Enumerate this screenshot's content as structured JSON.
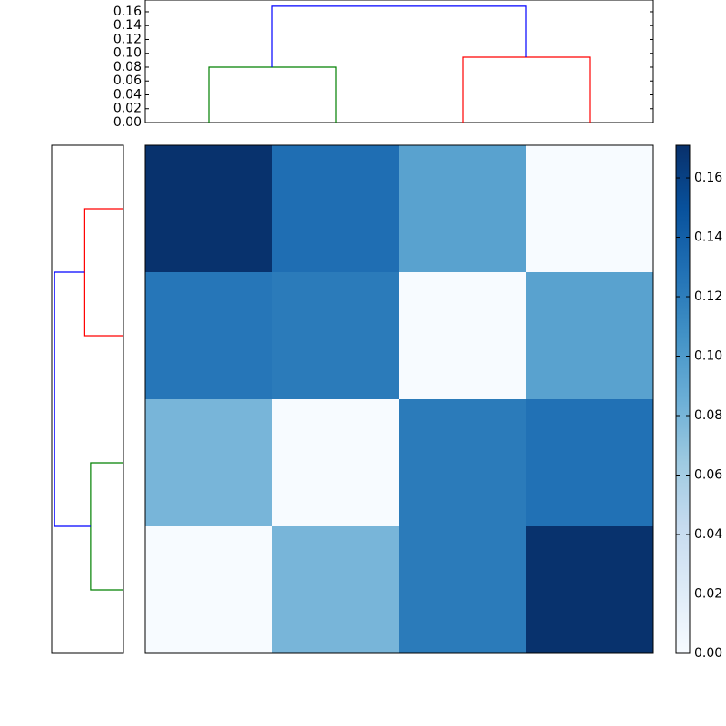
{
  "chart_data": [
    {
      "type": "heatmap",
      "colormap": "Blues",
      "values": [
        [
          0.17,
          0.13,
          0.095,
          0
        ],
        [
          0.125,
          0.122,
          0,
          0.095
        ],
        [
          0.08,
          0,
          0.122,
          0.128
        ],
        [
          0,
          0.08,
          0.122,
          0.17
        ]
      ],
      "clim": [
        0,
        0.171
      ],
      "cticks": [
        {
          "value": 0,
          "label": "0.00"
        },
        {
          "value": 0.02,
          "label": "0.02"
        },
        {
          "value": 0.04,
          "label": "0.04"
        },
        {
          "value": 0.06,
          "label": "0.06"
        },
        {
          "value": 0.08,
          "label": "0.08"
        },
        {
          "value": 0.1,
          "label": "0.10"
        },
        {
          "value": 0.12,
          "label": "0.12"
        },
        {
          "value": 0.14,
          "label": "0.14"
        },
        {
          "value": 0.16,
          "label": "0.16"
        }
      ]
    },
    {
      "type": "dendrogram",
      "orientation": "top",
      "xlim": [
        -0.5,
        3.5
      ],
      "ylim": [
        0,
        0.177
      ],
      "yticks": [
        {
          "value": 0,
          "label": "0.00"
        },
        {
          "value": 0.02,
          "label": "0.02"
        },
        {
          "value": 0.04,
          "label": "0.04"
        },
        {
          "value": 0.06,
          "label": "0.06"
        },
        {
          "value": 0.08,
          "label": "0.08"
        },
        {
          "value": 0.1,
          "label": "0.10"
        },
        {
          "value": 0.12,
          "label": "0.12"
        },
        {
          "value": 0.14,
          "label": "0.14"
        },
        {
          "value": 0.16,
          "label": "0.16"
        }
      ],
      "links": [
        {
          "color": "#008000",
          "x": [
            0,
            0,
            1,
            1
          ],
          "d": [
            0,
            0.08,
            0.08,
            0
          ]
        },
        {
          "color": "#ff0000",
          "x": [
            2,
            2,
            3,
            3
          ],
          "d": [
            0,
            0.0944,
            0.0944,
            0
          ]
        },
        {
          "color": "#0000ff",
          "x": [
            0.5,
            0.5,
            2.5,
            2.5
          ],
          "d": [
            0.08,
            0.168,
            0.168,
            0.0944
          ]
        }
      ]
    },
    {
      "type": "dendrogram",
      "orientation": "left",
      "ylim": [
        -0.5,
        3.5
      ],
      "xlim": [
        0.175,
        0
      ],
      "links": [
        {
          "color": "#008000",
          "x": [
            0,
            0,
            1,
            1
          ],
          "d": [
            0,
            0.08,
            0.08,
            0
          ]
        },
        {
          "color": "#ff0000",
          "x": [
            2,
            2,
            3,
            3
          ],
          "d": [
            0,
            0.0944,
            0.0944,
            0
          ]
        },
        {
          "color": "#0000ff",
          "x": [
            0.5,
            0.5,
            2.5,
            2.5
          ],
          "d": [
            0.08,
            0.168,
            0.168,
            0.0944
          ]
        }
      ]
    }
  ]
}
